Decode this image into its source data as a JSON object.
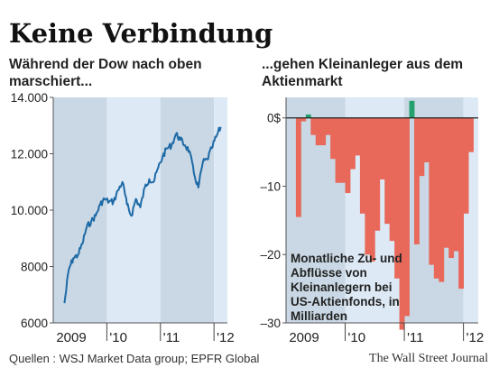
{
  "header": {
    "title": "Keine Verbindung",
    "subtitle_left": "Während der Dow nach oben marschiert...",
    "subtitle_right": "...gehen Kleinanleger aus dem Aktienmarkt"
  },
  "footer": {
    "source": "Quellen : WSJ Market Data group; EPFR Global",
    "credit": "The Wall Street Journal"
  },
  "colors": {
    "band_dark": "#c9d8e4",
    "band_light": "#dde9f5",
    "dow_line": "#1e6aa6",
    "outflow": "#e8685a",
    "inflow": "#23a06b"
  },
  "chart_data": [
    {
      "type": "line",
      "series": [
        {
          "values": [
            [
              "2009-03",
              6700
            ],
            [
              "2009-04",
              7900
            ],
            [
              "2009-05",
              8300
            ],
            [
              "2009-06",
              8400
            ],
            [
              "2009-07",
              8800
            ],
            [
              "2009-08",
              9400
            ],
            [
              "2009-09",
              9600
            ],
            [
              "2009-10",
              9800
            ],
            [
              "2009-11",
              10200
            ],
            [
              "2009-12",
              10400
            ],
            [
              "2010-01",
              10300
            ],
            [
              "2010-02",
              10300
            ],
            [
              "2010-03",
              10700
            ],
            [
              "2010-04",
              11000
            ],
            [
              "2010-05",
              10200
            ],
            [
              "2010-06",
              9800
            ],
            [
              "2010-07",
              10400
            ],
            [
              "2010-08",
              10100
            ],
            [
              "2010-09",
              10800
            ],
            [
              "2010-10",
              11100
            ],
            [
              "2010-11",
              11000
            ],
            [
              "2010-12",
              11500
            ],
            [
              "2011-01",
              11900
            ],
            [
              "2011-02",
              12200
            ],
            [
              "2011-03",
              12300
            ],
            [
              "2011-04",
              12700
            ],
            [
              "2011-05",
              12500
            ],
            [
              "2011-06",
              12300
            ],
            [
              "2011-07",
              12100
            ],
            [
              "2011-08",
              11300
            ],
            [
              "2011-09",
              10800
            ],
            [
              "2011-10",
              11700
            ],
            [
              "2011-11",
              11800
            ],
            [
              "2011-12",
              12200
            ],
            [
              "2012-01",
              12600
            ],
            [
              "2012-02",
              12950
            ]
          ]
        }
      ],
      "x_ticks": [
        "2009",
        "'10",
        "'11",
        "'12"
      ],
      "y_ticks": [
        "14.000",
        "12.000",
        "10.000",
        "8000",
        "6000"
      ],
      "ylim": [
        6000,
        14000
      ]
    },
    {
      "type": "bar",
      "x_ticks": [
        "2009",
        "'10",
        "'11",
        "'12"
      ],
      "y_ticks": [
        "0$",
        "–10",
        "–20",
        "–30"
      ],
      "ylim": [
        -30,
        3
      ],
      "annotation": "Monatliche Zu- und Abflüsse von Kleinanlegern bei US-Aktienfonds, in Milliarden",
      "values": [
        -14.5,
        -0.5,
        0.5,
        -2.5,
        -4,
        -4,
        -2.5,
        -6,
        -9.5,
        -9.5,
        -11,
        -7.5,
        -5.5,
        -14,
        -20,
        -21,
        -16.5,
        -9,
        -15.5,
        -18,
        -23.5,
        -31,
        -29,
        2.5,
        -18.5,
        -8.5,
        -6.5,
        -21.5,
        -23.5,
        -24,
        -19,
        -20.5,
        -19.5,
        -25,
        -14,
        -5
      ]
    }
  ]
}
